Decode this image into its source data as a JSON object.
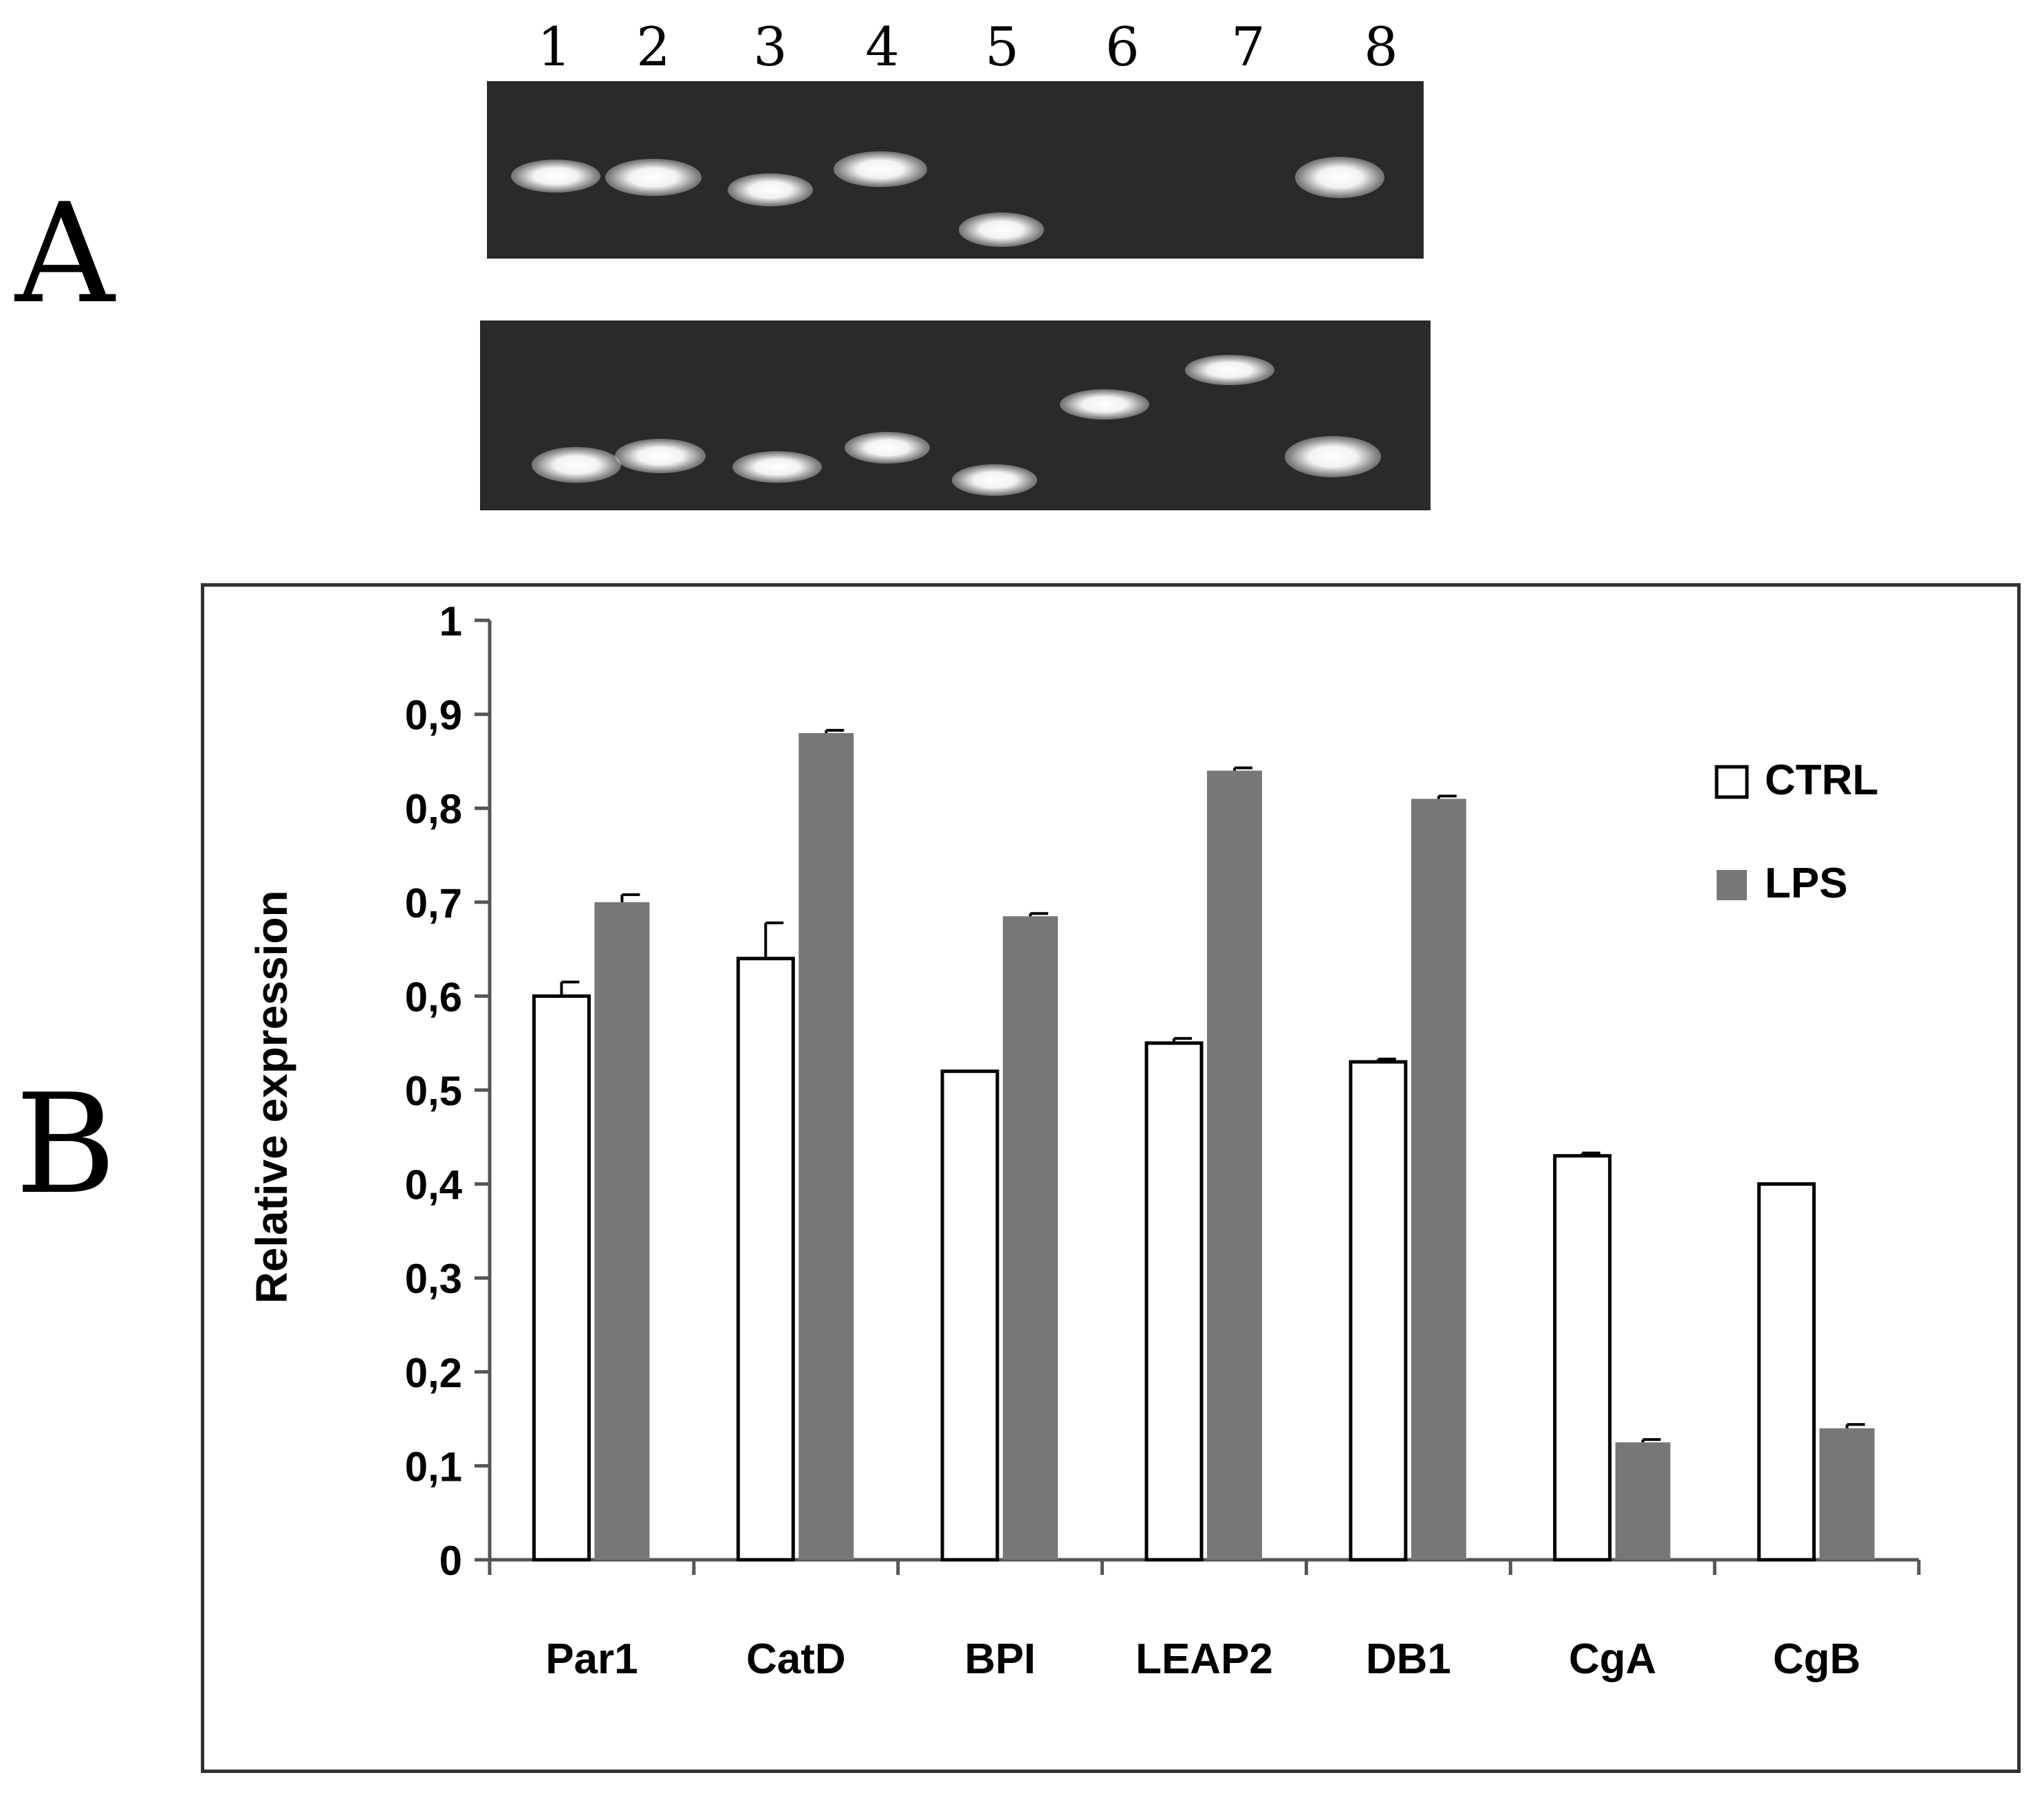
{
  "panels": {
    "a_label": "A",
    "b_label": "B"
  },
  "gel": {
    "lane_numbers": [
      "1",
      "2",
      "3",
      "4",
      "5",
      "6",
      "7",
      "8"
    ],
    "top_bands_present": [
      true,
      true,
      true,
      true,
      true,
      false,
      false,
      true
    ],
    "bottom_bands_present": [
      true,
      true,
      true,
      true,
      true,
      true,
      true,
      true
    ]
  },
  "chart_data": {
    "type": "bar",
    "title": "",
    "xlabel": "",
    "ylabel": "Relative expression",
    "ylim": [
      0,
      1
    ],
    "yticks": [
      "0",
      "0,1",
      "0,2",
      "0,3",
      "0,4",
      "0,5",
      "0,6",
      "0,7",
      "0,8",
      "0,9",
      "1"
    ],
    "categories": [
      "Par1",
      "CatD",
      "BPI",
      "LEAP2",
      "DB1",
      "CgA",
      "CgB"
    ],
    "series": [
      {
        "name": "CTRL",
        "color": "#ffffff",
        "values": [
          0.6,
          0.64,
          0.52,
          0.55,
          0.53,
          0.43,
          0.4
        ],
        "errors": [
          0.015,
          0.038,
          0.0,
          0.005,
          0.003,
          0.003,
          0.0
        ]
      },
      {
        "name": "LPS",
        "color": "#777777",
        "values": [
          0.7,
          0.88,
          0.685,
          0.84,
          0.81,
          0.125,
          0.14
        ],
        "errors": [
          0.008,
          0.003,
          0.003,
          0.003,
          0.003,
          0.003,
          0.004
        ]
      }
    ],
    "legend_position": "top-right",
    "grid": false
  }
}
